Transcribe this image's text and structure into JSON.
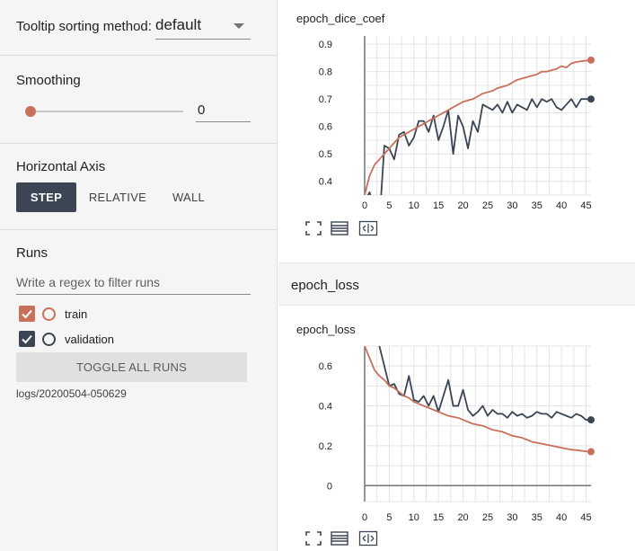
{
  "sidebar": {
    "tooltip": {
      "label": "Tooltip sorting method:",
      "value": "default"
    },
    "smoothing": {
      "title": "Smoothing",
      "value": "0"
    },
    "horizontal_axis": {
      "title": "Horizontal Axis",
      "options": [
        "STEP",
        "RELATIVE",
        "WALL"
      ],
      "selected": "STEP"
    },
    "runs": {
      "title": "Runs",
      "filter_placeholder": "Write a regex to filter runs",
      "items": [
        {
          "label": "train",
          "checked": true,
          "color": "#c8705a"
        },
        {
          "label": "validation",
          "checked": true,
          "color": "#3b4553"
        }
      ],
      "toggle_label": "TOGGLE ALL RUNS",
      "logdir": "logs/20200504-050629"
    }
  },
  "main": {
    "cards": [
      {
        "title": "epoch_dice_coef"
      },
      {
        "group_title": "epoch_loss",
        "title": "epoch_loss"
      }
    ],
    "actions": [
      "expand-icon",
      "data-toggle-icon",
      "fit-domain-icon"
    ]
  },
  "colors": {
    "train": "#c8705a",
    "validation": "#3b4553",
    "grid": "#e4e4e4"
  },
  "chart_data": [
    {
      "type": "line",
      "title": "epoch_dice_coef",
      "xlim": [
        0,
        46
      ],
      "ylim": [
        0.35,
        0.93
      ],
      "xticks": [
        "0",
        "5",
        "10",
        "15",
        "20",
        "25",
        "30",
        "35",
        "40",
        "45"
      ],
      "yticks": [
        "0.4",
        "0.5",
        "0.6",
        "0.7",
        "0.8",
        "0.9"
      ],
      "series": [
        {
          "name": "train",
          "values": [
            0.35,
            0.42,
            0.46,
            0.48,
            0.5,
            0.52,
            0.54,
            0.56,
            0.57,
            0.58,
            0.59,
            0.6,
            0.61,
            0.62,
            0.63,
            0.64,
            0.65,
            0.66,
            0.67,
            0.68,
            0.69,
            0.695,
            0.7,
            0.71,
            0.72,
            0.725,
            0.73,
            0.74,
            0.745,
            0.75,
            0.76,
            0.77,
            0.775,
            0.78,
            0.785,
            0.79,
            0.8,
            0.8,
            0.805,
            0.81,
            0.82,
            0.815,
            0.83,
            0.835,
            0.838,
            0.84,
            0.842
          ]
        },
        {
          "name": "validation",
          "values": [
            0.33,
            0.36,
            0.3,
            0.25,
            0.53,
            0.52,
            0.48,
            0.57,
            0.58,
            0.53,
            0.56,
            0.62,
            0.62,
            0.58,
            0.64,
            0.55,
            0.6,
            0.66,
            0.5,
            0.64,
            0.6,
            0.52,
            0.62,
            0.58,
            0.68,
            0.67,
            0.66,
            0.68,
            0.65,
            0.69,
            0.65,
            0.68,
            0.67,
            0.66,
            0.7,
            0.67,
            0.7,
            0.69,
            0.7,
            0.67,
            0.66,
            0.68,
            0.7,
            0.67,
            0.7,
            0.7,
            0.7
          ]
        }
      ]
    },
    {
      "type": "line",
      "title": "epoch_loss",
      "xlim": [
        0,
        46
      ],
      "ylim": [
        -0.08,
        0.7
      ],
      "xticks": [
        "0",
        "5",
        "10",
        "15",
        "20",
        "25",
        "30",
        "35",
        "40",
        "45"
      ],
      "yticks": [
        "0",
        "0.2",
        "0.4",
        "0.6"
      ],
      "series": [
        {
          "name": "train",
          "values": [
            0.7,
            0.64,
            0.58,
            0.55,
            0.53,
            0.5,
            0.49,
            0.47,
            0.45,
            0.44,
            0.42,
            0.41,
            0.4,
            0.39,
            0.38,
            0.37,
            0.36,
            0.35,
            0.345,
            0.34,
            0.33,
            0.32,
            0.31,
            0.305,
            0.3,
            0.29,
            0.28,
            0.275,
            0.27,
            0.26,
            0.25,
            0.245,
            0.24,
            0.23,
            0.22,
            0.215,
            0.21,
            0.205,
            0.2,
            0.195,
            0.19,
            0.185,
            0.18,
            0.178,
            0.175,
            0.172,
            0.17
          ]
        },
        {
          "name": "validation",
          "values": [
            0.75,
            0.85,
            0.9,
            0.7,
            0.6,
            0.5,
            0.51,
            0.46,
            0.45,
            0.55,
            0.43,
            0.42,
            0.45,
            0.4,
            0.45,
            0.37,
            0.45,
            0.53,
            0.4,
            0.4,
            0.48,
            0.38,
            0.35,
            0.37,
            0.4,
            0.35,
            0.38,
            0.36,
            0.36,
            0.34,
            0.37,
            0.35,
            0.36,
            0.34,
            0.35,
            0.37,
            0.36,
            0.36,
            0.34,
            0.37,
            0.36,
            0.35,
            0.34,
            0.36,
            0.35,
            0.33,
            0.33
          ]
        }
      ]
    }
  ]
}
